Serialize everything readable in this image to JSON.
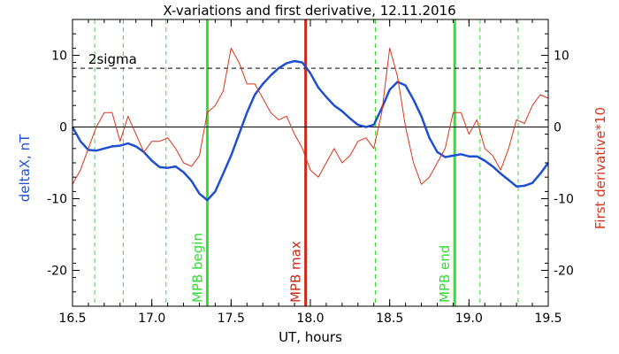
{
  "chart_data": {
    "type": "line",
    "title": "X-variations and first derivative, 12.11.2016",
    "xlabel": "UT, hours",
    "ylabel_left": "deltaX, nT",
    "ylabel_right": "First derivative*10",
    "xlim": [
      16.5,
      19.5
    ],
    "ylim": [
      -25,
      15
    ],
    "xticks": [
      16.5,
      17.0,
      17.5,
      18.0,
      18.5,
      19.0,
      19.5
    ],
    "xtick_labels": [
      "16.5",
      "17.0",
      "17.5",
      "18.0",
      "18.5",
      "19.0",
      "19.5"
    ],
    "yticks": [
      -20,
      -10,
      0,
      10
    ],
    "ytick_labels": [
      "-20",
      "-10",
      "0",
      "10"
    ],
    "grid": false,
    "sigma_level": 8.2,
    "sigma_label": "2sigma",
    "zero_line": 0,
    "colors": {
      "deltaX": "#1f4fd0",
      "derivative": "#d9341a",
      "mpb_edge": "#33dd33",
      "mpb_max": "#cc2a1a",
      "dashed_green": "#33dd33"
    },
    "dashed_green_x": [
      16.64,
      16.82,
      17.09,
      18.41,
      19.07,
      19.31
    ],
    "markers": [
      {
        "label": "MPB begin",
        "x": 17.35,
        "role": "mpb_edge"
      },
      {
        "label": "MPB max",
        "x": 17.97,
        "role": "mpb_max"
      },
      {
        "label": "MPB end",
        "x": 18.91,
        "role": "mpb_edge"
      }
    ],
    "series": [
      {
        "name": "deltaX",
        "color_key": "deltaX",
        "x": [
          16.5,
          16.55,
          16.6,
          16.65,
          16.7,
          16.75,
          16.8,
          16.85,
          16.9,
          16.95,
          17.0,
          17.05,
          17.1,
          17.15,
          17.2,
          17.25,
          17.3,
          17.35,
          17.4,
          17.45,
          17.5,
          17.55,
          17.6,
          17.65,
          17.7,
          17.75,
          17.8,
          17.85,
          17.9,
          17.95,
          18.0,
          18.05,
          18.1,
          18.15,
          18.2,
          18.25,
          18.3,
          18.35,
          18.4,
          18.45,
          18.5,
          18.55,
          18.6,
          18.65,
          18.7,
          18.75,
          18.8,
          18.85,
          18.9,
          18.95,
          19.0,
          19.05,
          19.1,
          19.15,
          19.2,
          19.25,
          19.3,
          19.35,
          19.4,
          19.45,
          19.5
        ],
        "y": [
          0,
          -2,
          -3.2,
          -3.3,
          -3,
          -2.7,
          -2.6,
          -2.3,
          -2.7,
          -3.5,
          -4.7,
          -5.6,
          -5.7,
          -5.5,
          -6.3,
          -7.5,
          -9.3,
          -10.2,
          -9,
          -6.5,
          -4,
          -1,
          2,
          4.5,
          6,
          7.2,
          8.2,
          8.9,
          9.2,
          9,
          7.5,
          5.5,
          4.2,
          3,
          2.2,
          1.2,
          0.3,
          0,
          0.3,
          2.6,
          5.2,
          6.3,
          5.8,
          3.8,
          1.5,
          -1.5,
          -3.5,
          -4.2,
          -4,
          -3.8,
          -4.1,
          -4.1,
          -4.7,
          -5.5,
          -6.5,
          -7.4,
          -8.3,
          -8.2,
          -7.8,
          -6.5,
          -5
        ]
      },
      {
        "name": "First derivative*10",
        "color_key": "derivative",
        "x": [
          16.5,
          16.55,
          16.6,
          16.65,
          16.7,
          16.75,
          16.8,
          16.85,
          16.9,
          16.95,
          17.0,
          17.05,
          17.1,
          17.15,
          17.2,
          17.25,
          17.3,
          17.35,
          17.4,
          17.45,
          17.5,
          17.55,
          17.6,
          17.65,
          17.7,
          17.75,
          17.8,
          17.85,
          17.9,
          17.95,
          18.0,
          18.05,
          18.1,
          18.15,
          18.2,
          18.25,
          18.3,
          18.35,
          18.4,
          18.45,
          18.5,
          18.55,
          18.6,
          18.65,
          18.7,
          18.75,
          18.8,
          18.85,
          18.9,
          18.95,
          19.0,
          19.05,
          19.1,
          19.15,
          19.2,
          19.25,
          19.3,
          19.35,
          19.4,
          19.45,
          19.5
        ],
        "y": [
          -8,
          -6,
          -3,
          0,
          2,
          2,
          -2,
          1.5,
          -1,
          -3.5,
          -2,
          -2,
          -1.5,
          -3,
          -5,
          -5.5,
          -4,
          2,
          3,
          5,
          11,
          9,
          6,
          6,
          4,
          2,
          1,
          1.5,
          -1,
          -3,
          -6,
          -7,
          -5,
          -3,
          -5,
          -4,
          -2,
          -1.5,
          -3,
          2,
          11,
          7,
          0,
          -5,
          -8,
          -7,
          -5,
          -3,
          2,
          2,
          -1,
          1,
          -3,
          -4,
          -6,
          -3,
          1,
          0.5,
          3,
          4.5,
          4
        ]
      }
    ]
  }
}
